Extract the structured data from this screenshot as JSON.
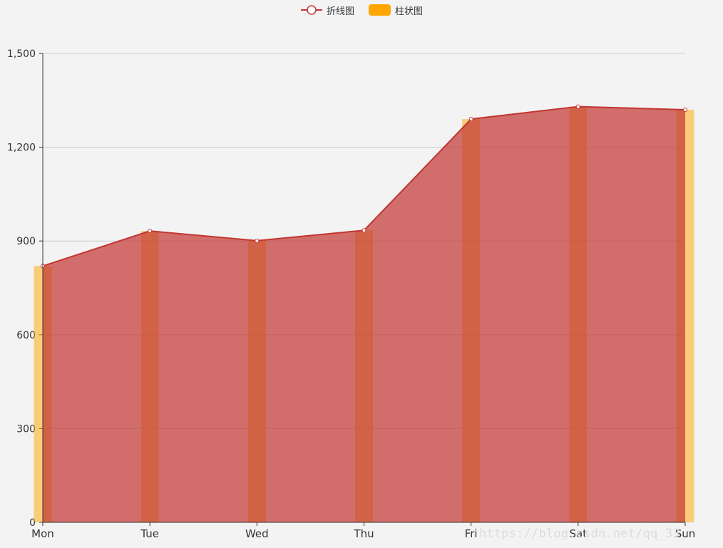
{
  "legend": {
    "line_label": "折线图",
    "bar_label": "柱状图"
  },
  "watermark": "https://blog.csdn.net/qq_33",
  "colors": {
    "line": "#c23531",
    "area": "#c23531",
    "bar": "#ffa500",
    "axis": "#333333",
    "grid": "#cccccc",
    "background": "#f3f3f3"
  },
  "chart_data": {
    "type": "line",
    "categories": [
      "Mon",
      "Tue",
      "Wed",
      "Thu",
      "Fri",
      "Sat",
      "Sun"
    ],
    "series": [
      {
        "name": "折线图",
        "type": "line",
        "area": true,
        "values": [
          820,
          932,
          901,
          934,
          1290,
          1330,
          1320
        ]
      },
      {
        "name": "柱状图",
        "type": "bar",
        "values": [
          820,
          932,
          901,
          934,
          1290,
          1330,
          1320
        ]
      }
    ],
    "y_ticks": [
      "0",
      "300",
      "600",
      "900",
      "1,200",
      "1,500"
    ],
    "ylim": [
      0,
      1500
    ],
    "grid": true,
    "legend_position": "top-center"
  }
}
